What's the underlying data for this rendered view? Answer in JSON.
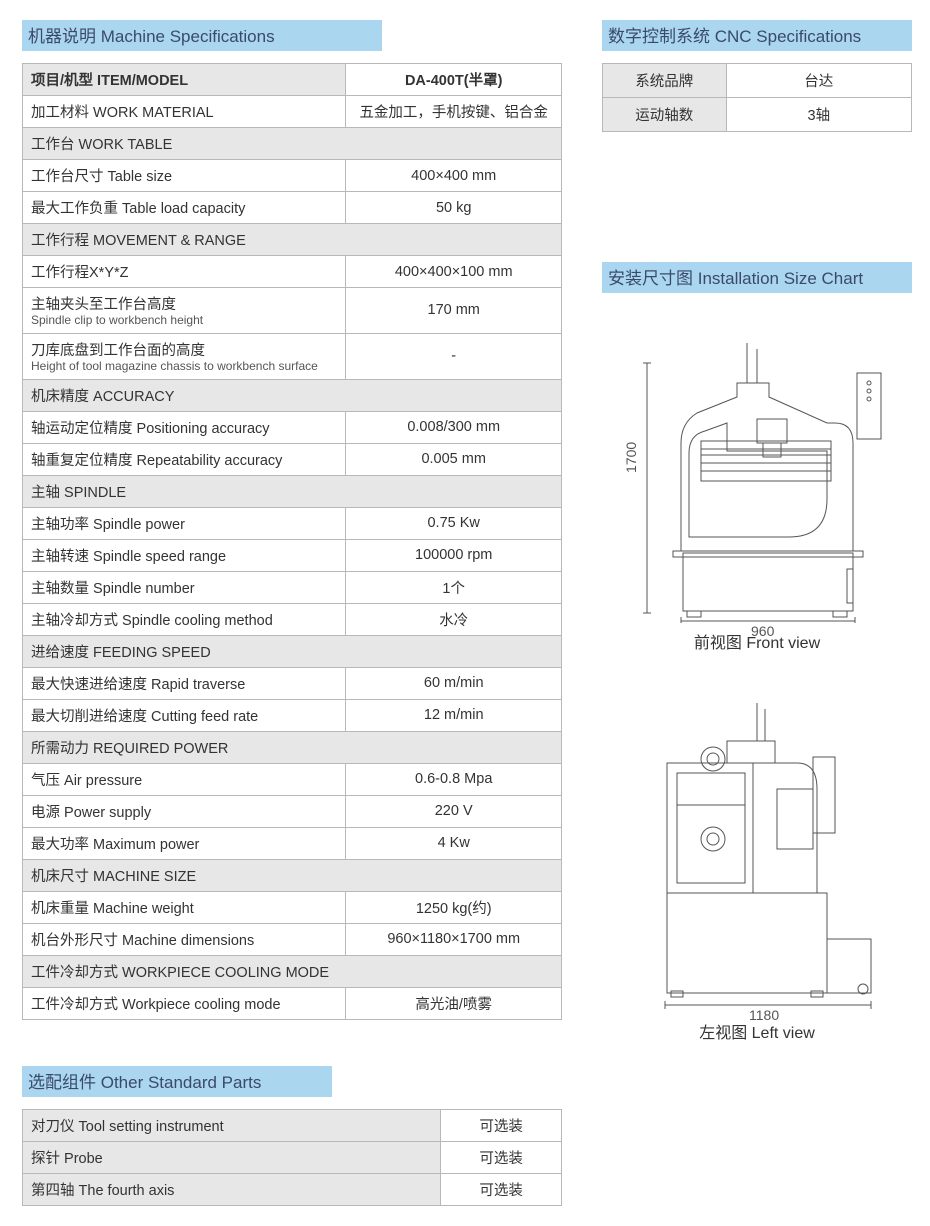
{
  "colors": {
    "header_bg": "#abd6ef",
    "header_text": "#3a4a6b",
    "section_row_bg": "#e7e7e7",
    "border": "#b8b8b8",
    "text": "#333333"
  },
  "headers": {
    "machine_spec": "机器说明  Machine Specifications",
    "cnc_spec": "数字控制系统 CNC Specifications",
    "install_chart": "安装尺寸图  Installation Size Chart",
    "other_parts": "选配组件  Other Standard Parts"
  },
  "spec_table": {
    "head_left": "项目/机型 ITEM/MODEL",
    "head_right": "DA-400T(半罩)",
    "rows": [
      {
        "type": "data",
        "label": "加工材料 WORK MATERIAL",
        "value": "五金加工，手机按键、铝合金"
      },
      {
        "type": "section",
        "label": "工作台 WORK TABLE"
      },
      {
        "type": "data",
        "label": "工作台尺寸 Table size",
        "value": "400×400 mm"
      },
      {
        "type": "data",
        "label": "最大工作负重 Table load capacity",
        "value": "50 kg"
      },
      {
        "type": "section",
        "label": "工作行程 MOVEMENT & RANGE"
      },
      {
        "type": "data",
        "label": "工作行程X*Y*Z",
        "value": "400×400×100 mm"
      },
      {
        "type": "data",
        "label": "主轴夹头至工作台高度",
        "sub": "Spindle clip to workbench height",
        "value": "170 mm"
      },
      {
        "type": "data",
        "label": "刀库底盘到工作台面的高度",
        "sub": "Height of tool magazine chassis to workbench surface",
        "value": "-"
      },
      {
        "type": "section",
        "label": "机床精度 ACCURACY"
      },
      {
        "type": "data",
        "label": "轴运动定位精度 Positioning accuracy",
        "value": "0.008/300 mm"
      },
      {
        "type": "data",
        "label": "轴重复定位精度 Repeatability accuracy",
        "value": "0.005 mm"
      },
      {
        "type": "section",
        "label": "主轴 SPINDLE"
      },
      {
        "type": "data",
        "label": "主轴功率 Spindle power",
        "value": "0.75 Kw"
      },
      {
        "type": "data",
        "label": "主轴转速 Spindle speed range",
        "value": "100000 rpm"
      },
      {
        "type": "data",
        "label": "主轴数量 Spindle number",
        "value": "1个"
      },
      {
        "type": "data",
        "label": "主轴冷却方式 Spindle cooling method",
        "value": "水冷"
      },
      {
        "type": "section",
        "label": "进给速度 FEEDING SPEED"
      },
      {
        "type": "data",
        "label": "最大快速进给速度 Rapid traverse",
        "value": "60 m/min"
      },
      {
        "type": "data",
        "label": "最大切削进给速度 Cutting feed rate",
        "value": "12 m/min"
      },
      {
        "type": "section",
        "label": "所需动力 REQUIRED POWER"
      },
      {
        "type": "data",
        "label": "气压 Air pressure",
        "value": "0.6-0.8 Mpa"
      },
      {
        "type": "data",
        "label": "电源 Power supply",
        "value": "220 V"
      },
      {
        "type": "data",
        "label": "最大功率 Maximum power",
        "value": "4 Kw"
      },
      {
        "type": "section",
        "label": "机床尺寸 MACHINE SIZE"
      },
      {
        "type": "data",
        "label": "机床重量 Machine weight",
        "value": "1250 kg(约)"
      },
      {
        "type": "data",
        "label": "机台外形尺寸 Machine dimensions",
        "value": "960×1180×1700 mm"
      },
      {
        "type": "section",
        "label": "工件冷却方式 WORKPIECE COOLING MODE"
      },
      {
        "type": "data",
        "label": "工件冷却方式 Workpiece cooling mode",
        "value": "高光油/喷雾"
      }
    ]
  },
  "cnc_table": {
    "rows": [
      {
        "label": "系统品牌",
        "value": "台达"
      },
      {
        "label": "运动轴数",
        "value": "3轴"
      }
    ]
  },
  "diagrams": {
    "front": {
      "caption": "前视图  Front view",
      "width_dim": "960",
      "height_dim": "1700"
    },
    "left": {
      "caption": "左视图  Left view",
      "width_dim": "1180"
    }
  },
  "parts_table": {
    "rows": [
      {
        "label": "对刀仪 Tool setting instrument",
        "value": "可选装"
      },
      {
        "label": "探针 Probe",
        "value": "可选装"
      },
      {
        "label": "第四轴 The fourth axis",
        "value": "可选装"
      }
    ]
  }
}
